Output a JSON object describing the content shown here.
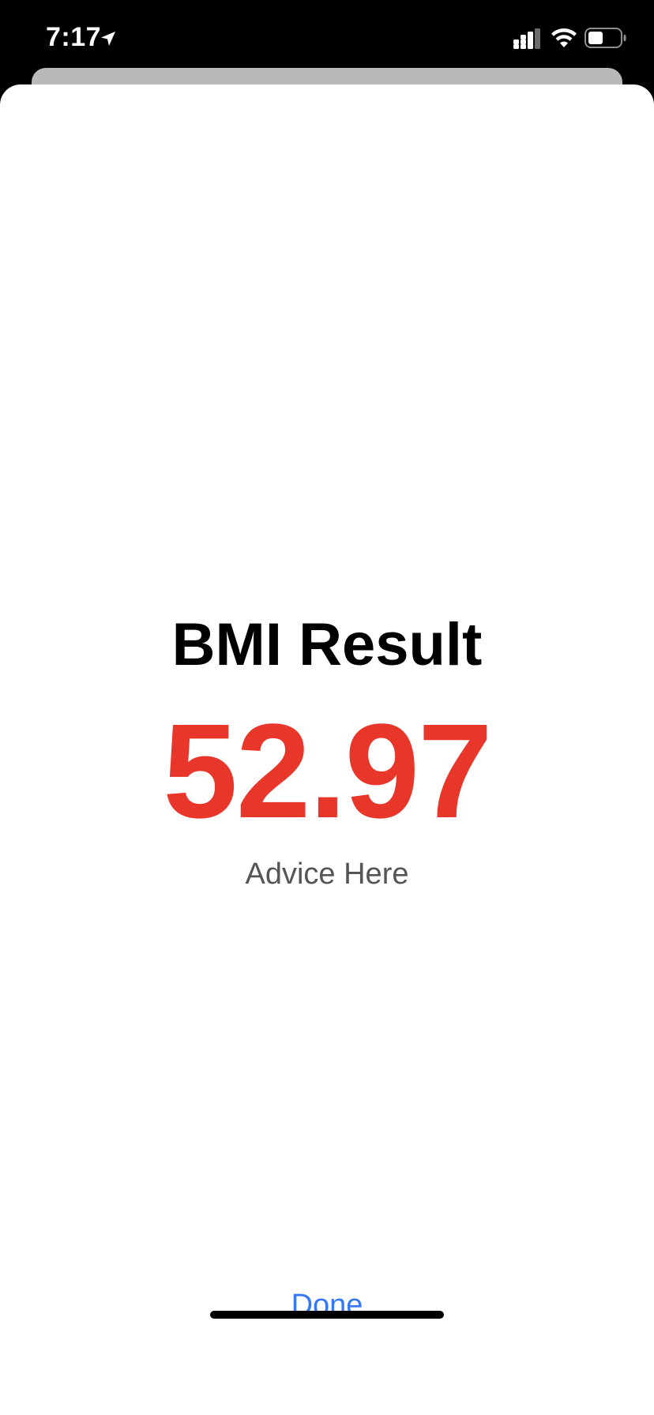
{
  "status_bar": {
    "time": "7:17",
    "icons": {
      "location": "location-arrow-icon",
      "signal": "cellular-signal-icon",
      "wifi": "wifi-icon",
      "battery": "battery-icon"
    }
  },
  "result": {
    "title": "BMI Result",
    "value": "52.97",
    "advice": "Advice Here"
  },
  "actions": {
    "done_label": "Done"
  },
  "colors": {
    "value_color": "#E8372A",
    "advice_color": "#555555",
    "done_color": "#3478F6"
  }
}
